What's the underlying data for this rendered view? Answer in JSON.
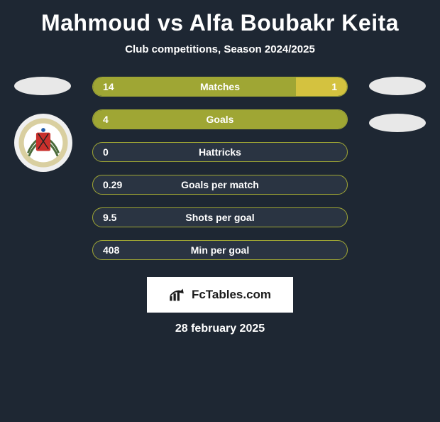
{
  "title": "Mahmoud vs Alfa Boubakr Keita",
  "subtitle": "Club competitions, Season 2024/2025",
  "date": "28 february 2025",
  "branding": {
    "text": "FcTables.com"
  },
  "colors": {
    "background": "#1e2733",
    "bar_border": "#9fa634",
    "bar_track": "#2a3442",
    "left_fill": "#9fa634",
    "right_fill": "#d4c23f",
    "text": "#ffffff",
    "branding_bg": "#ffffff",
    "branding_text": "#1a1a1a",
    "ellipse": "#e8e8e8"
  },
  "left_club_badge": {
    "outer": "#f0f0f0",
    "ring": "#d9cfa0",
    "center": "#c9302c",
    "laurel": "#4a6b3a",
    "cross": "#222222"
  },
  "rows": [
    {
      "label": "Matches",
      "left": "14",
      "right": "1",
      "left_pct": 80,
      "right_pct": 20
    },
    {
      "label": "Goals",
      "left": "4",
      "right": "",
      "left_pct": 100,
      "right_pct": 0
    },
    {
      "label": "Hattricks",
      "left": "0",
      "right": "",
      "left_pct": 0,
      "right_pct": 0
    },
    {
      "label": "Goals per match",
      "left": "0.29",
      "right": "",
      "left_pct": 0,
      "right_pct": 0
    },
    {
      "label": "Shots per goal",
      "left": "9.5",
      "right": "",
      "left_pct": 0,
      "right_pct": 0
    },
    {
      "label": "Min per goal",
      "left": "408",
      "right": "",
      "left_pct": 0,
      "right_pct": 0
    }
  ]
}
